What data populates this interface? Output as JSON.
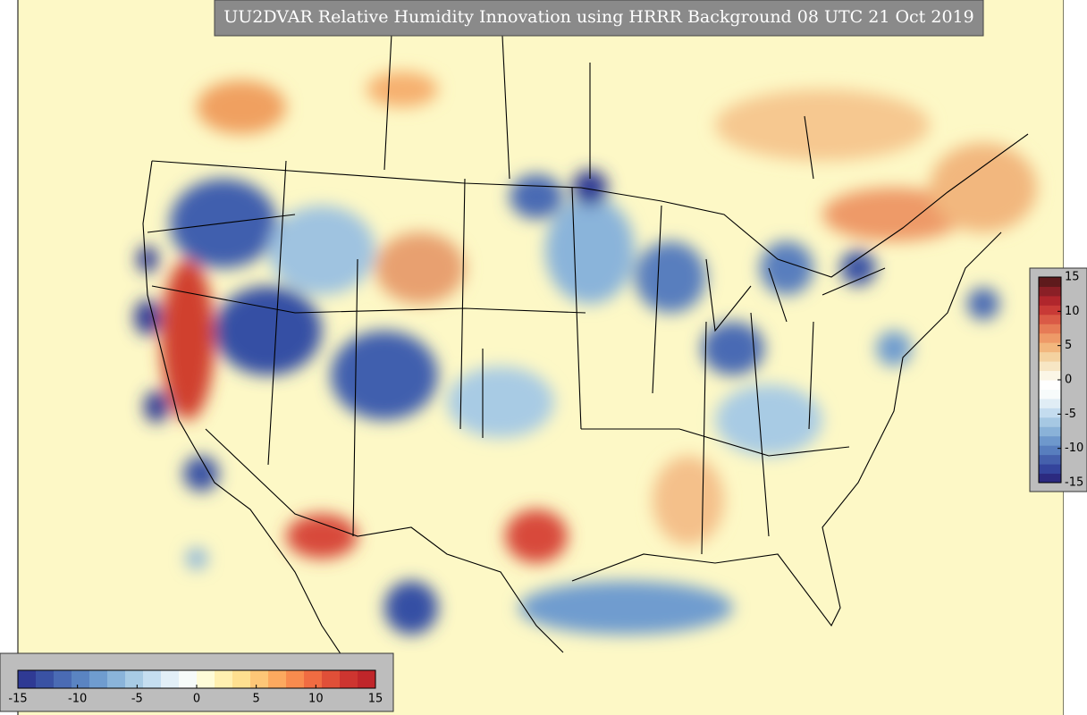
{
  "title": "UU2DVAR Relative Humidity Innovation using HRRR Background 08 UTC 21 Oct 2019",
  "colorbars": [
    {
      "orientation": "horizontal",
      "lim": [
        -15,
        15
      ],
      "ticks": [
        -15,
        -10,
        -5,
        0,
        5,
        10,
        15
      ],
      "colors": [
        "#2f3a94",
        "#3a52a4",
        "#4a6bb4",
        "#5a84c2",
        "#6f9ccf",
        "#8ab4da",
        "#a8cbe4",
        "#c5def0",
        "#e2eff7",
        "#f6fbf9",
        "#fefcd8",
        "#fff0b0",
        "#fee090",
        "#fdc677",
        "#fca95f",
        "#f88b4e",
        "#f06c42",
        "#e04f38",
        "#ce3530",
        "#c0262a"
      ]
    },
    {
      "orientation": "vertical",
      "lim": [
        -15,
        15
      ],
      "ticks": [
        15,
        10,
        5,
        0,
        -5,
        -10,
        -15
      ],
      "colors": [
        "#2c2a80",
        "#34449c",
        "#4560ac",
        "#587ebe",
        "#6e98cc",
        "#8ab2d8",
        "#a6c8e3",
        "#c4dcef",
        "#e0edf5",
        "#f7fbfb",
        "#ffffff",
        "#fbf6e6",
        "#f7e6c4",
        "#f4d2a0",
        "#f2b77e",
        "#ee9a68",
        "#e67b56",
        "#da5a46",
        "#c83a36",
        "#b0262c",
        "#8a1f26",
        "#5e1a1c"
      ]
    }
  ]
}
